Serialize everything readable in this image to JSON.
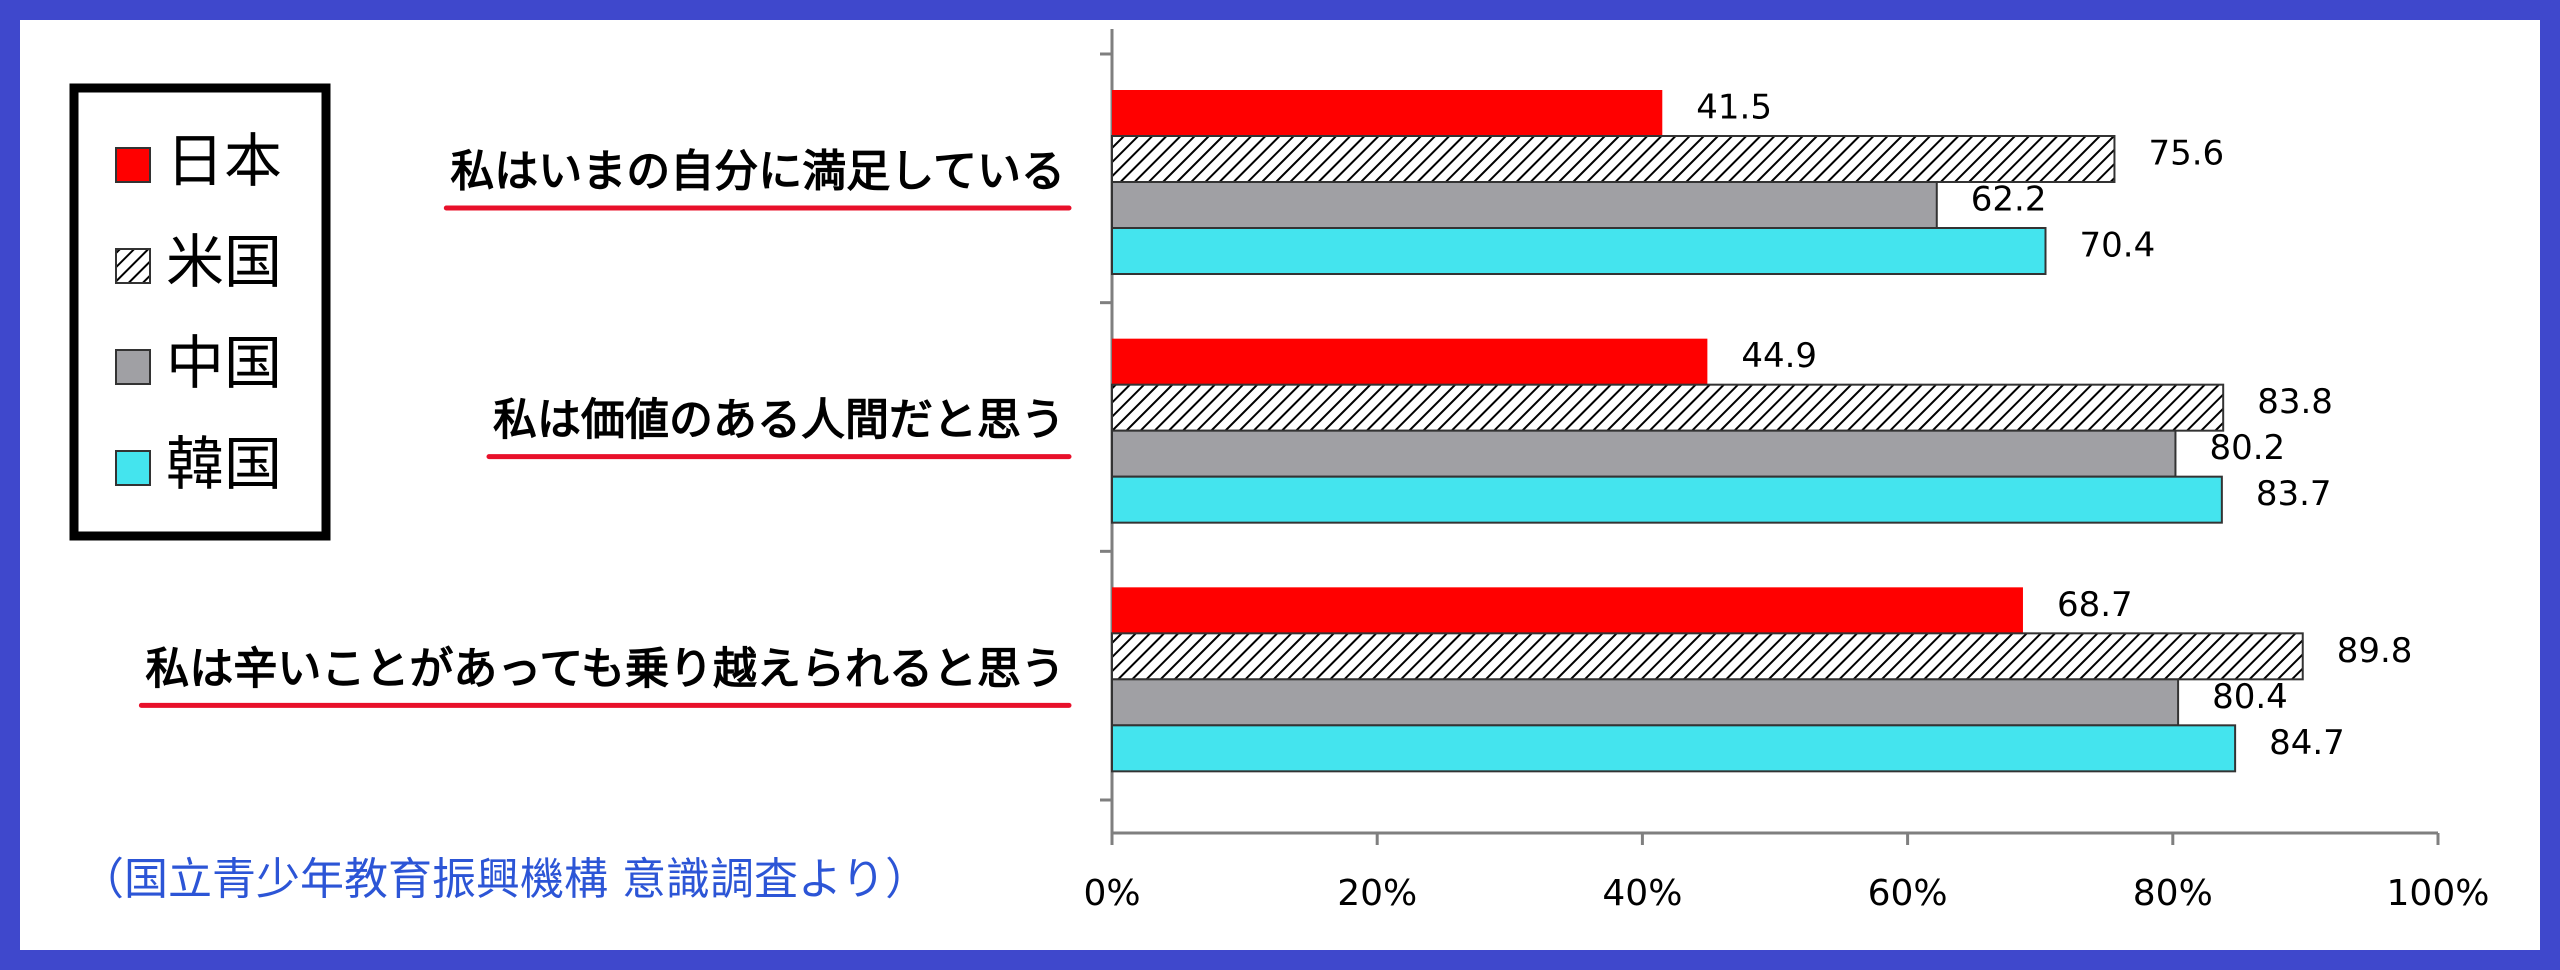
{
  "chart_data": {
    "type": "hbar",
    "categories": [
      "私はいまの自分に満足している",
      "私は価値のある人間だと思う",
      "私は辛いことがあっても乗り越えられると思う"
    ],
    "series": [
      {
        "name": "日本",
        "color": "#ff0000",
        "values": [
          41.5,
          44.9,
          68.7
        ]
      },
      {
        "name": "米国",
        "color": "#ffffff",
        "pattern": "hatch",
        "values": [
          75.6,
          83.8,
          89.8
        ]
      },
      {
        "name": "中国",
        "color": "#a0a0a4",
        "values": [
          62.2,
          80.2,
          80.4
        ]
      },
      {
        "name": "韓国",
        "color": "#44e4ee",
        "values": [
          70.4,
          83.7,
          84.7
        ]
      }
    ],
    "xlim": [
      0,
      100
    ],
    "xticks": [
      {
        "value": 0,
        "label": "0%"
      },
      {
        "value": 20,
        "label": "20%"
      },
      {
        "value": 40,
        "label": "40%"
      },
      {
        "value": 60,
        "label": "60%"
      },
      {
        "value": 80,
        "label": "80%"
      },
      {
        "value": 100,
        "label": "100%"
      }
    ],
    "legend": "upper left",
    "source": "（国立青少年教育振興機構 意識調査より）"
  }
}
